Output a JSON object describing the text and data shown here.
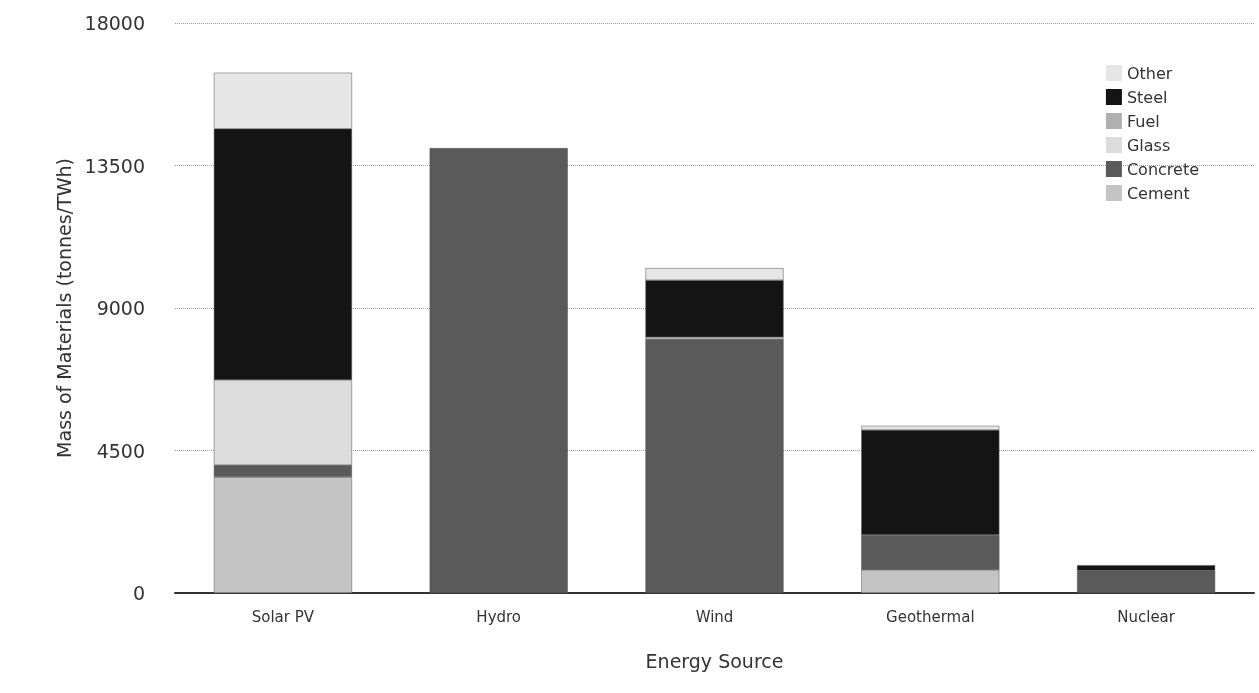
{
  "chart_data": {
    "type": "bar",
    "stacked": true,
    "xlabel": "Energy Source",
    "ylabel": "Mass of Materials (tonnes/TWh)",
    "categories": [
      "Solar PV",
      "Hydro",
      "Wind",
      "Geothermal",
      "Nuclear"
    ],
    "series": [
      {
        "name": "Cement",
        "color": "#c4c4c4",
        "values": [
          3660,
          0,
          0,
          730,
          0
        ]
      },
      {
        "name": "Concrete",
        "color": "#5a5a5a",
        "values": [
          380,
          14050,
          8020,
          1100,
          700
        ]
      },
      {
        "name": "Glass",
        "color": "#dcdcdc",
        "values": [
          2690,
          0,
          60,
          0,
          0
        ]
      },
      {
        "name": "Fuel",
        "color": "#b0b0b0",
        "values": [
          0,
          0,
          0,
          0,
          0
        ]
      },
      {
        "name": "Steel",
        "color": "#141414",
        "values": [
          7930,
          0,
          1800,
          3320,
          180
        ]
      },
      {
        "name": "Other",
        "color": "#e6e6e6",
        "values": [
          1770,
          0,
          380,
          130,
          0
        ]
      }
    ],
    "ylim": [
      0,
      18000
    ],
    "yticks": [
      0,
      4500,
      9000,
      13500,
      18000
    ],
    "grid": "y",
    "legend": "top right"
  }
}
